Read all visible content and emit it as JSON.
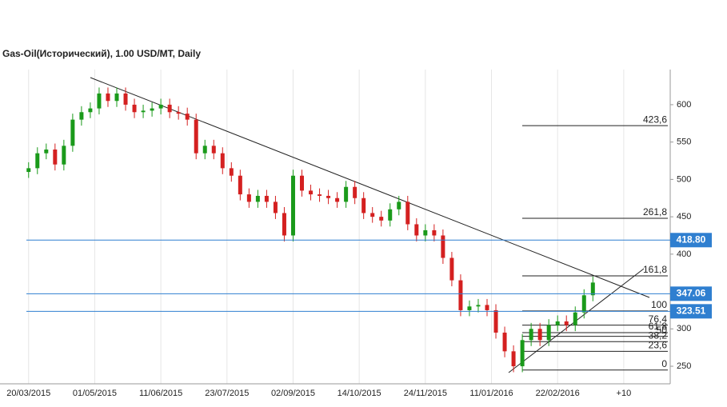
{
  "chart_data": {
    "type": "candlestick",
    "title": "Gas-Oil(Исторический), 1.00 USD/MT, Daily",
    "x": [
      0,
      4,
      8,
      12,
      16,
      20,
      24,
      28,
      32,
      36,
      40,
      44,
      48,
      52,
      56,
      60,
      64,
      68,
      72,
      76,
      80,
      84,
      88,
      92,
      96,
      100,
      104,
      108,
      112,
      116,
      120,
      124,
      128,
      132,
      136,
      140,
      144,
      148,
      152,
      156,
      160,
      164,
      168,
      172,
      176,
      180,
      184,
      188,
      192,
      196,
      200,
      204,
      208,
      212,
      216,
      220,
      224,
      228,
      232,
      236,
      240,
      244,
      248,
      252,
      256
    ],
    "open": [
      510,
      515,
      535,
      540,
      520,
      545,
      580,
      590,
      595,
      615,
      605,
      615,
      600,
      590,
      592,
      595,
      600,
      590,
      588,
      580,
      535,
      545,
      535,
      515,
      505,
      480,
      470,
      478,
      470,
      455,
      425,
      505,
      485,
      480,
      478,
      475,
      470,
      490,
      475,
      455,
      450,
      445,
      460,
      470,
      440,
      425,
      432,
      425,
      395,
      365,
      325,
      330,
      332,
      325,
      295,
      270,
      250,
      285,
      300,
      285,
      305,
      310,
      305,
      322,
      345
    ],
    "high": [
      523,
      543,
      548,
      548,
      553,
      588,
      598,
      603,
      623,
      623,
      623,
      623,
      608,
      600,
      603,
      608,
      608,
      598,
      596,
      588,
      553,
      553,
      543,
      523,
      513,
      488,
      486,
      486,
      478,
      463,
      513,
      513,
      493,
      488,
      486,
      483,
      498,
      498,
      483,
      463,
      458,
      468,
      478,
      478,
      448,
      440,
      440,
      433,
      403,
      373,
      338,
      340,
      340,
      333,
      303,
      278,
      293,
      308,
      308,
      313,
      318,
      318,
      330,
      353,
      370
    ],
    "low": [
      502,
      507,
      527,
      512,
      512,
      537,
      572,
      582,
      587,
      597,
      597,
      592,
      582,
      582,
      584,
      587,
      582,
      580,
      572,
      527,
      527,
      527,
      507,
      497,
      472,
      462,
      462,
      462,
      447,
      417,
      417,
      477,
      472,
      470,
      467,
      462,
      462,
      467,
      447,
      442,
      437,
      437,
      452,
      432,
      417,
      417,
      417,
      387,
      357,
      317,
      317,
      322,
      317,
      287,
      262,
      242,
      242,
      277,
      277,
      277,
      297,
      297,
      297,
      314,
      337
    ],
    "close": [
      515,
      535,
      540,
      520,
      545,
      580,
      590,
      595,
      615,
      605,
      615,
      600,
      590,
      592,
      595,
      600,
      590,
      588,
      580,
      535,
      545,
      535,
      515,
      505,
      480,
      470,
      478,
      470,
      455,
      425,
      505,
      485,
      480,
      478,
      475,
      470,
      490,
      475,
      455,
      450,
      445,
      460,
      470,
      440,
      425,
      432,
      425,
      395,
      365,
      325,
      330,
      332,
      325,
      295,
      270,
      250,
      285,
      300,
      285,
      305,
      310,
      305,
      322,
      345,
      362
    ],
    "up_color": "#1a9a1a",
    "down_color": "#d42020",
    "xlim": [
      -1,
      290
    ],
    "ylim": [
      226.5,
      647
    ],
    "xticks": [
      {
        "value": 0,
        "label": "20/03/2015"
      },
      {
        "value": 30,
        "label": "01/05/2015"
      },
      {
        "value": 60,
        "label": "11/06/2015"
      },
      {
        "value": 90,
        "label": "23/07/2015"
      },
      {
        "value": 120,
        "label": "02/09/2015"
      },
      {
        "value": 150,
        "label": "14/10/2015"
      },
      {
        "value": 180,
        "label": "24/11/2015"
      },
      {
        "value": 210,
        "label": "11/01/2016"
      },
      {
        "value": 240,
        "label": "22/02/2016"
      },
      {
        "value": 270,
        "label": "+10"
      }
    ],
    "yticks": [
      250,
      300,
      350,
      400,
      450,
      500,
      550,
      600
    ],
    "grid": true,
    "price_levels": [
      {
        "value": 418.8,
        "label": "418.80"
      },
      {
        "value": 347.06,
        "label": "347.06"
      },
      {
        "value": 323.51,
        "label": "323.51"
      }
    ],
    "level_color": "#2f7fd0",
    "fib_levels": [
      {
        "value": 572,
        "label": "423,6"
      },
      {
        "value": 448,
        "label": "261,8"
      },
      {
        "value": 371,
        "label": "161,8"
      },
      {
        "value": 324,
        "label": "100"
      },
      {
        "value": 305,
        "label": "76,4"
      },
      {
        "value": 295,
        "label": "61,8"
      },
      {
        "value": 290,
        "label": "50"
      },
      {
        "value": 283,
        "label": "38,2"
      },
      {
        "value": 270,
        "label": "23,6"
      },
      {
        "value": 245,
        "label": "0"
      }
    ]
  }
}
